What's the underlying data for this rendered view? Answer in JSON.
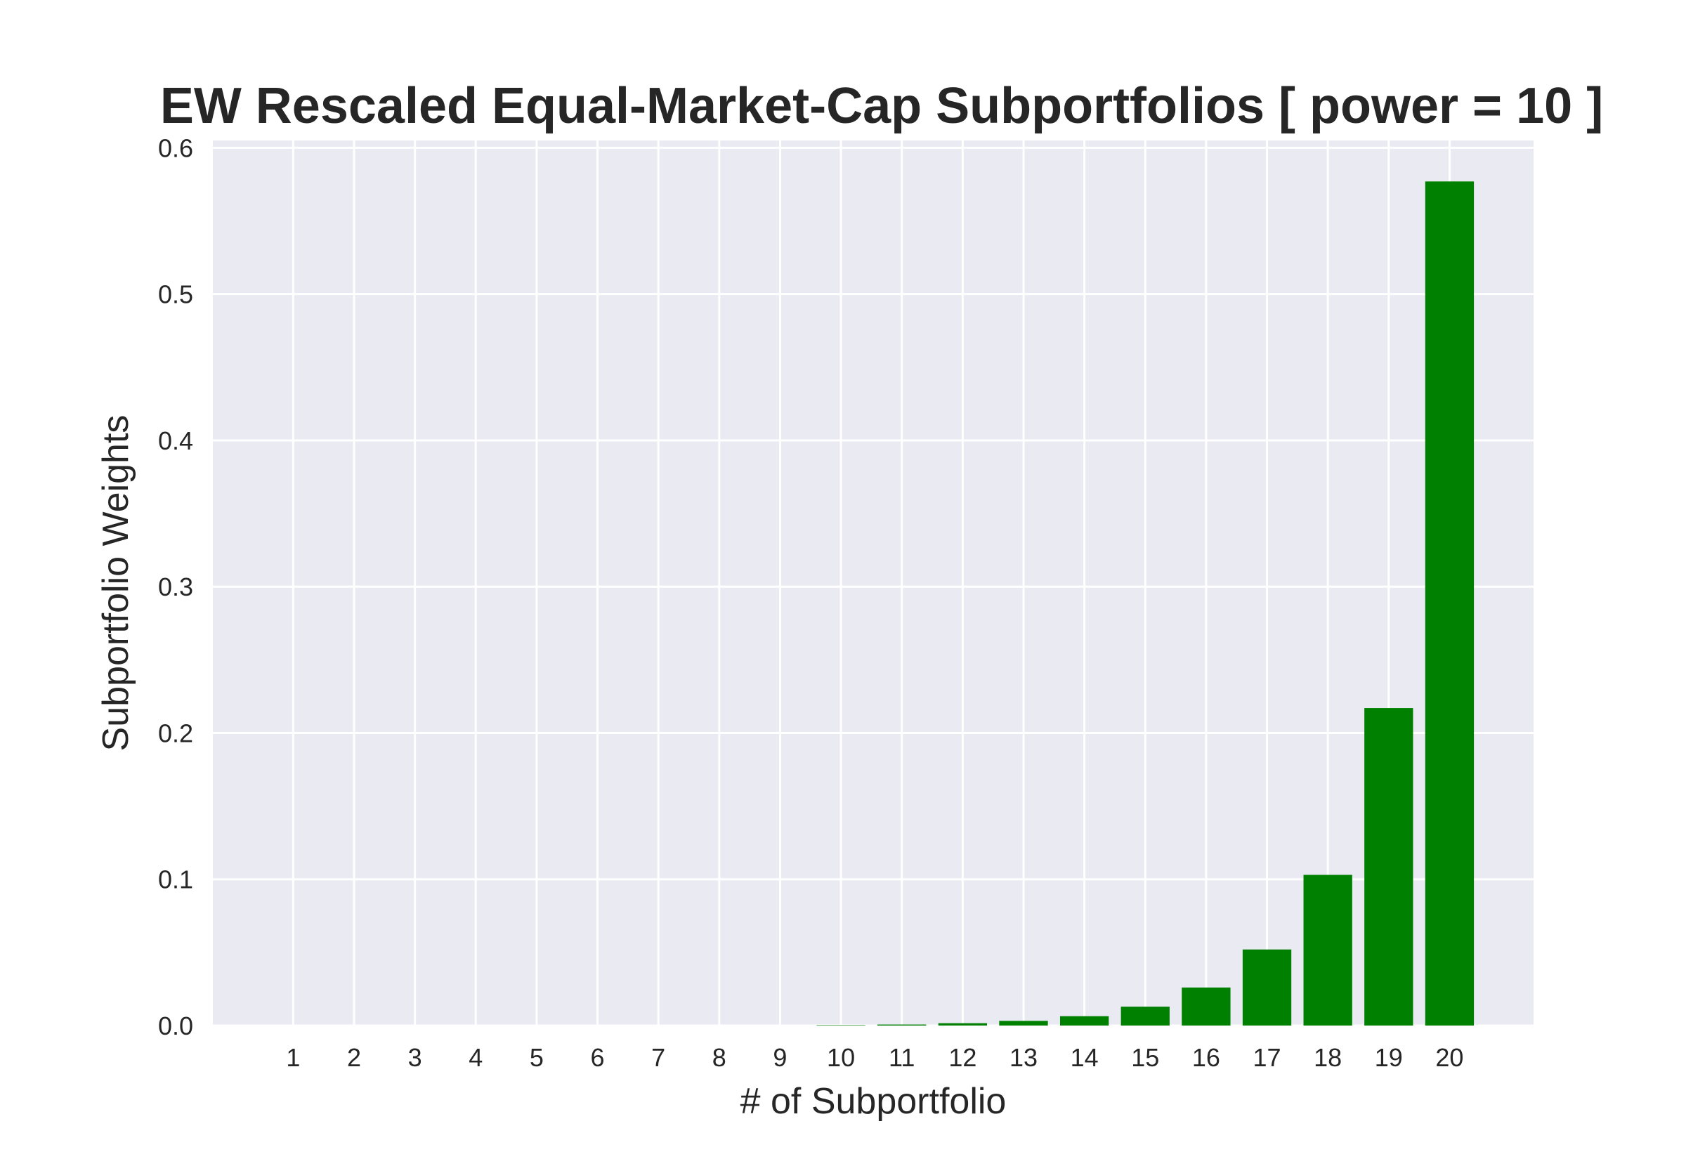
{
  "chart_data": {
    "type": "bar",
    "title": "EW Rescaled Equal-Market-Cap Subportfolios [ power = 10 ]",
    "xlabel": "# of Subportfolio",
    "ylabel": "Subportfolio Weights",
    "categories": [
      "1",
      "2",
      "3",
      "4",
      "5",
      "6",
      "7",
      "8",
      "9",
      "10",
      "11",
      "12",
      "13",
      "14",
      "15",
      "16",
      "17",
      "18",
      "19",
      "20"
    ],
    "values": [
      0.0,
      0.0,
      0.0,
      0.0,
      0.0,
      0.0,
      0.0,
      0.0,
      0.0,
      0.0003,
      0.0007,
      0.0016,
      0.0032,
      0.0064,
      0.0129,
      0.026,
      0.052,
      0.103,
      0.217,
      0.577
    ],
    "ylim": [
      0,
      0.605
    ],
    "yticks": [
      "0.0",
      "0.1",
      "0.2",
      "0.3",
      "0.4",
      "0.5",
      "0.6"
    ],
    "grid": true,
    "legend": "none",
    "colors": {
      "bar": "#008000",
      "plot_background": "#eaeaf2",
      "grid": "#ffffff",
      "text": "#262626"
    }
  }
}
